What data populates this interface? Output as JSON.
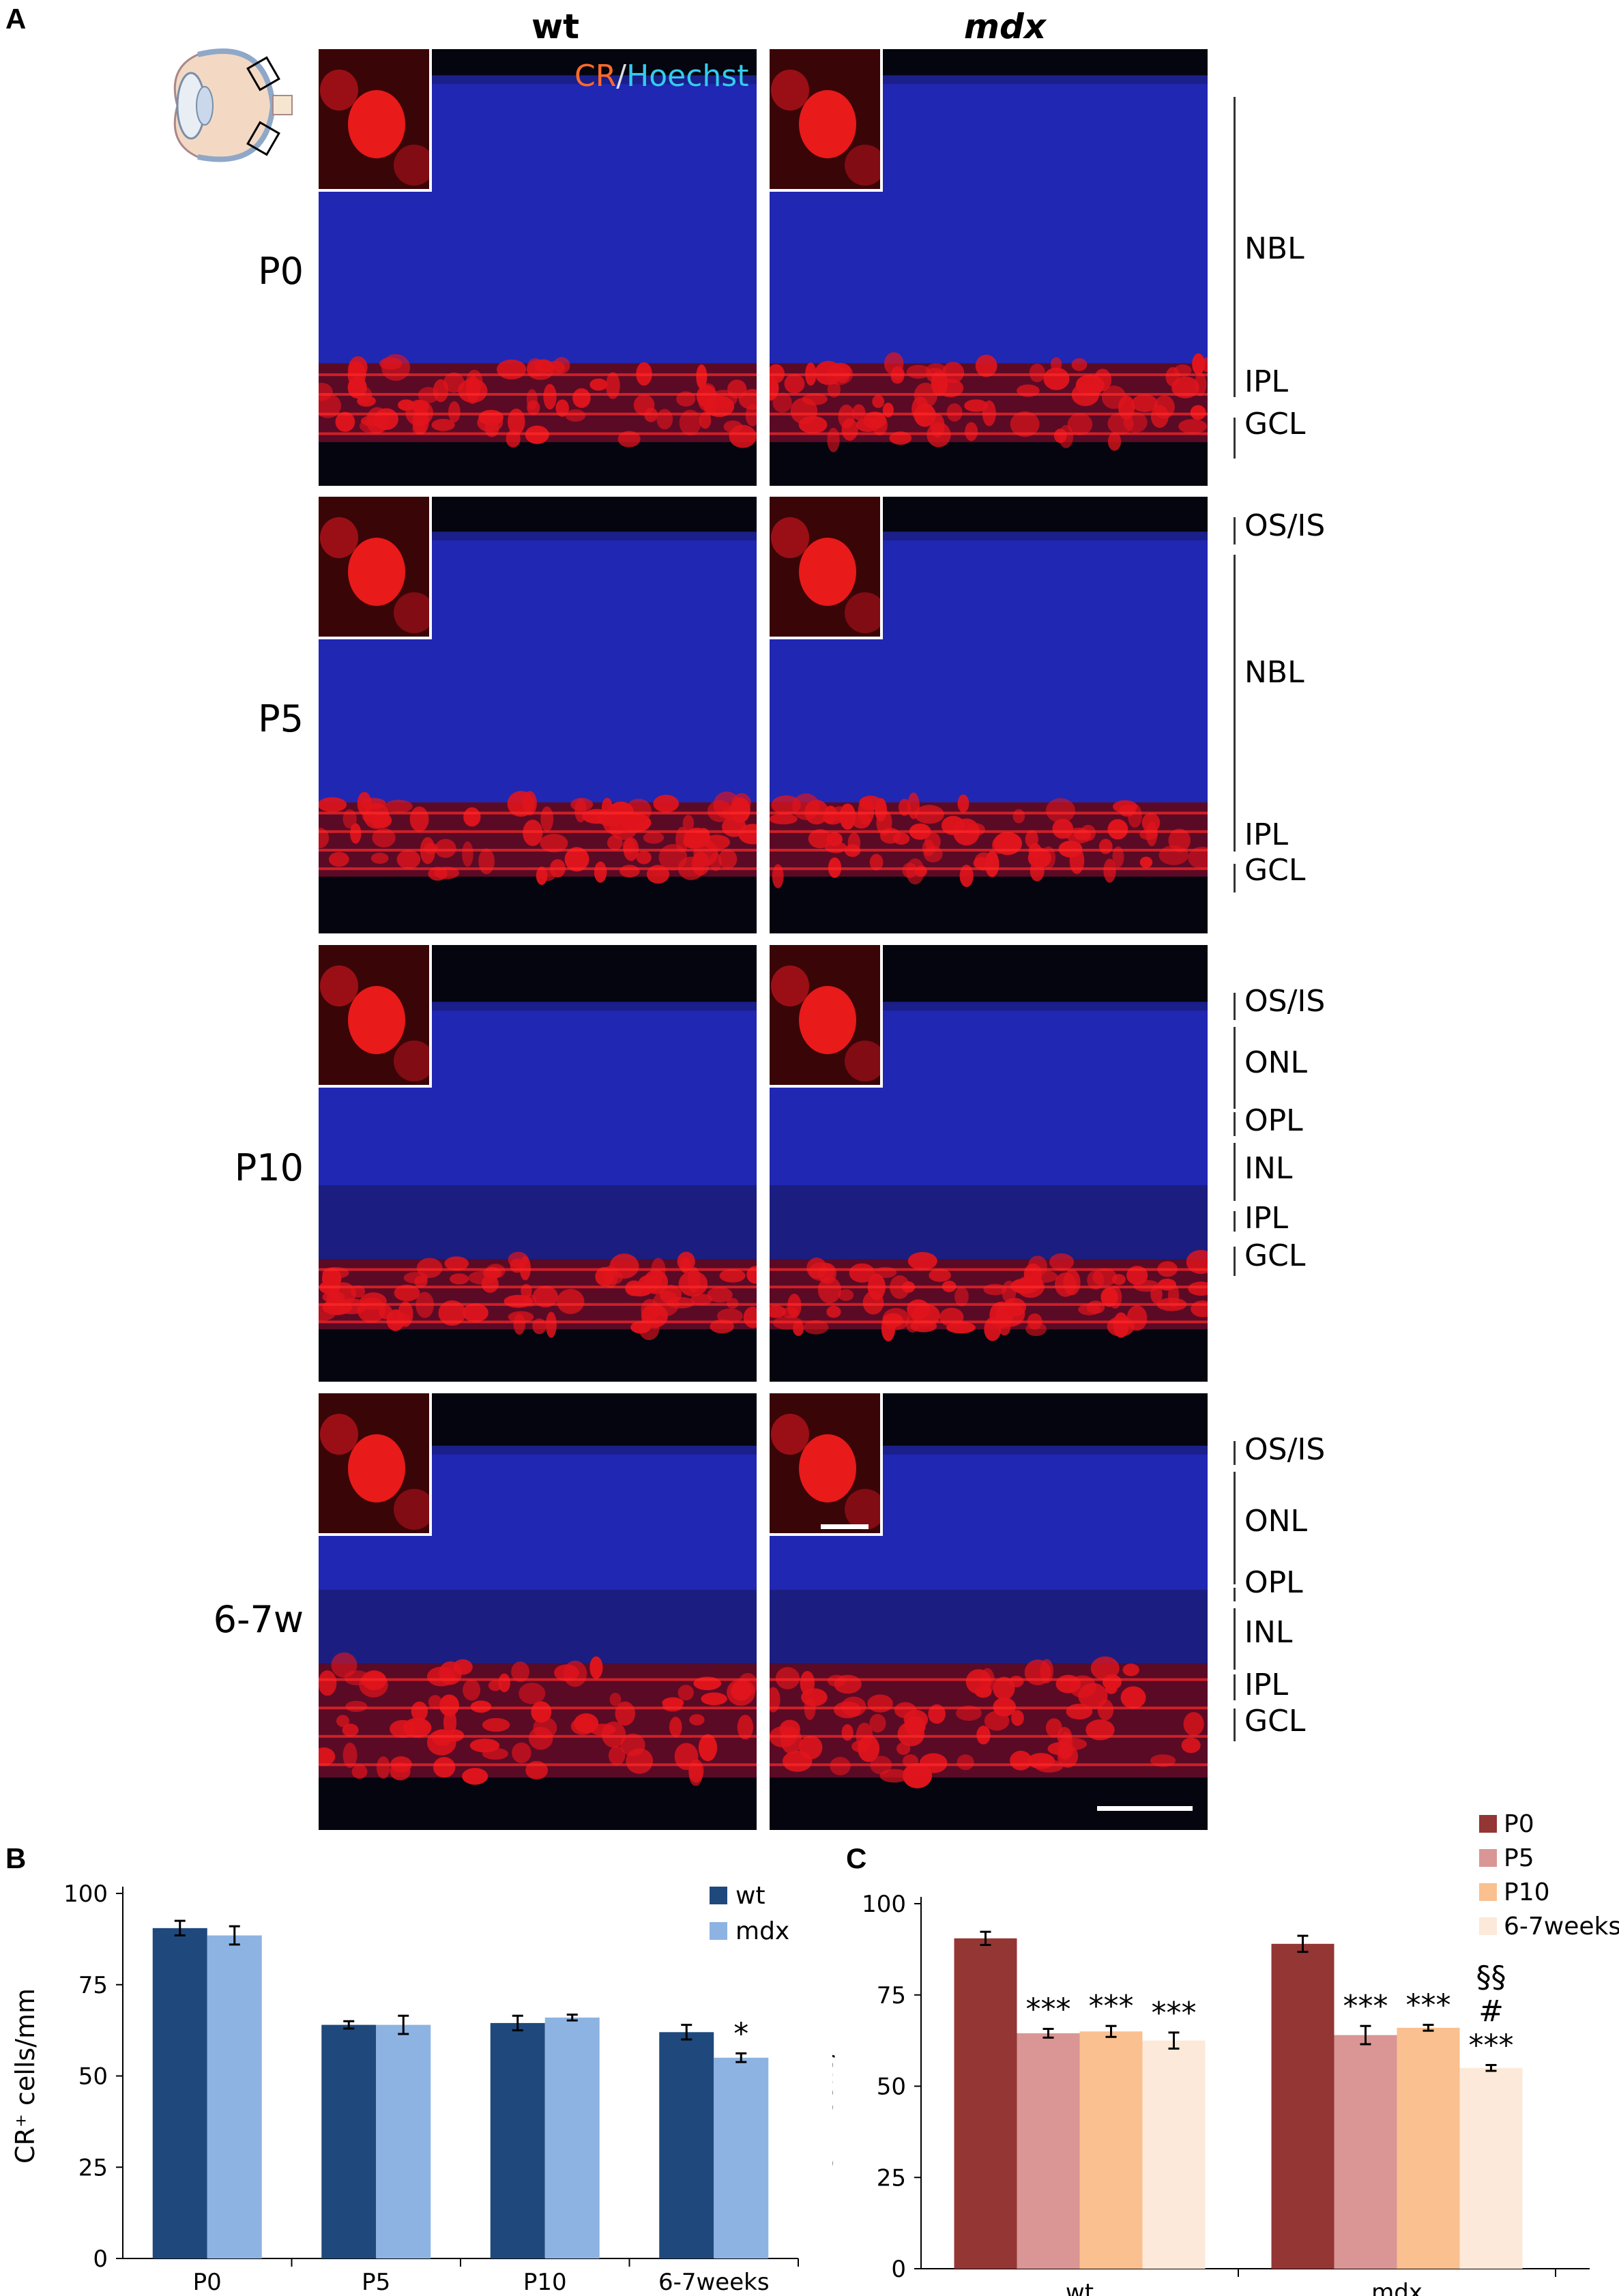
{
  "panels": {
    "a": "A",
    "b": "B",
    "c": "C"
  },
  "columns": {
    "wt": "wt",
    "mdx": "mdx"
  },
  "stain": {
    "cr": "CR",
    "sep": "/",
    "hoechst": "Hoechst"
  },
  "rows": [
    {
      "label": "P0",
      "layers": [
        "NBL",
        "IPL",
        "GCL"
      ]
    },
    {
      "label": "P5",
      "layers": [
        "OS/IS",
        "NBL",
        "IPL",
        "GCL"
      ]
    },
    {
      "label": "P10",
      "layers": [
        "OS/IS",
        "ONL",
        "OPL",
        "INL",
        "IPL",
        "GCL"
      ]
    },
    {
      "label": "6-7w",
      "layers": [
        "OS/IS",
        "ONL",
        "OPL",
        "INL",
        "IPL",
        "GCL"
      ]
    }
  ],
  "colors": {
    "wt": "#1f497d",
    "mdx": "#8db3e2",
    "P0": "#943634",
    "P5": "#d99694",
    "P10": "#fac090",
    "w67": "#fde9d9",
    "cr": "#ff6a2a",
    "hoechst": "#33ccee"
  },
  "chart_data": [
    {
      "type": "bar",
      "categories": [
        "P0",
        "P5",
        "P10",
        "6-7weeks"
      ],
      "ylabel": "CR⁺ cells/mm",
      "ylim": [
        0,
        100
      ],
      "yticks": [
        0,
        25,
        50,
        75,
        100
      ],
      "legend": "top-right",
      "series": [
        {
          "name": "wt",
          "values": [
            90.5,
            64,
            64.5,
            62
          ],
          "errors": [
            2,
            1,
            2,
            2
          ]
        },
        {
          "name": "mdx",
          "values": [
            88.5,
            64,
            66,
            55
          ],
          "errors": [
            2.5,
            2.5,
            0.8,
            1.2
          ]
        }
      ],
      "annotations": [
        {
          "category": "6-7weeks",
          "series": "mdx",
          "text": "*"
        }
      ]
    },
    {
      "type": "bar",
      "categories": [
        "wt",
        "mdx"
      ],
      "ylabel": "CR⁺ cells/mm",
      "ylim": [
        0,
        100
      ],
      "yticks": [
        0,
        25,
        50,
        75,
        100
      ],
      "legend": "top-right",
      "series": [
        {
          "name": "P0",
          "values": [
            90.5,
            89
          ],
          "errors": [
            1.8,
            2.2
          ]
        },
        {
          "name": "P5",
          "values": [
            64.5,
            64
          ],
          "errors": [
            1.2,
            2.5
          ]
        },
        {
          "name": "P10",
          "values": [
            65,
            66
          ],
          "errors": [
            1.5,
            0.8
          ]
        },
        {
          "name": "6-7weeks",
          "values": [
            62.5,
            55
          ],
          "errors": [
            2.2,
            0.8
          ]
        }
      ],
      "annotations": [
        {
          "category": "wt",
          "series": "P5",
          "text": "***"
        },
        {
          "category": "wt",
          "series": "P10",
          "text": "***"
        },
        {
          "category": "wt",
          "series": "6-7weeks",
          "text": "***"
        },
        {
          "category": "mdx",
          "series": "P5",
          "text": "***"
        },
        {
          "category": "mdx",
          "series": "P10",
          "text": "***"
        },
        {
          "category": "mdx",
          "series": "6-7weeks",
          "text": "***"
        },
        {
          "category": "mdx",
          "series": "6-7weeks",
          "text": "#"
        },
        {
          "category": "mdx",
          "series": "6-7weeks",
          "text": "§§"
        }
      ]
    }
  ]
}
